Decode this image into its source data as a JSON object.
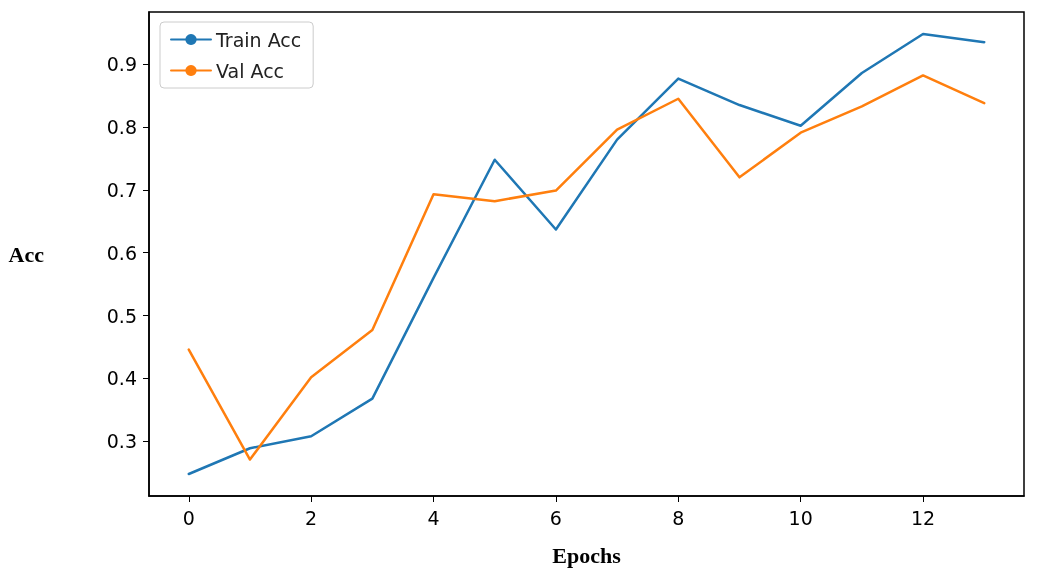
{
  "chart_data": {
    "type": "line",
    "xlabel": "Epochs",
    "ylabel": "Acc",
    "x": [
      0,
      1,
      2,
      3,
      4,
      5,
      6,
      7,
      8,
      9,
      10,
      11,
      12,
      13
    ],
    "series": [
      {
        "name": "Train Acc",
        "color": "#1f77b4",
        "values": [
          0.248,
          0.289,
          0.308,
          0.368,
          0.56,
          0.748,
          0.637,
          0.78,
          0.877,
          0.835,
          0.802,
          0.886,
          0.948,
          0.935
        ]
      },
      {
        "name": "Val Acc",
        "color": "#ff7f0e",
        "values": [
          0.446,
          0.271,
          0.402,
          0.477,
          0.693,
          0.682,
          0.699,
          0.796,
          0.845,
          0.72,
          0.791,
          0.833,
          0.882,
          0.838
        ]
      }
    ],
    "xlim": [
      -0.65,
      13.65
    ],
    "xticks": [
      0,
      2,
      4,
      6,
      8,
      10,
      12
    ],
    "ylim": [
      0.213,
      0.983
    ],
    "yticks": [
      0.3,
      0.4,
      0.5,
      0.6,
      0.7,
      0.8,
      0.9
    ],
    "grid": false,
    "legend": "top left",
    "marker": "none",
    "line_style": "solid"
  }
}
